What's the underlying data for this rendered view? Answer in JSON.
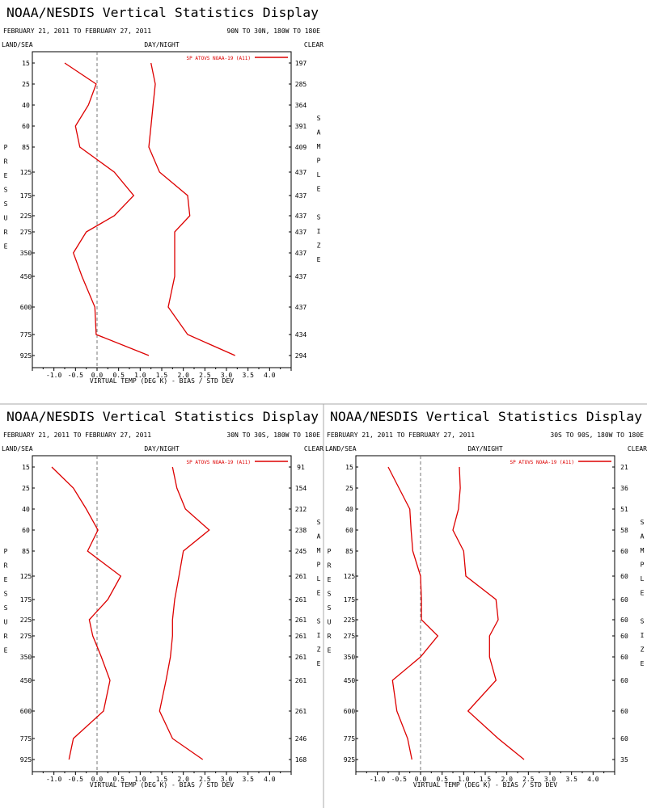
{
  "colors": {
    "series": "#dd0000",
    "axis": "#000000",
    "zero_line": "#777777",
    "divider": "#aaaaaa"
  },
  "chart_data": [
    {
      "type": "line",
      "title": "NOAA/NESDIS Vertical Statistics Display",
      "date_range": "FEBRUARY 21, 2011 TO FEBRUARY 27, 2011",
      "region": "90N TO 30N, 180W TO 180E",
      "land_sea_label": "LAND/SEA",
      "day_night_label": "DAY/NIGHT",
      "clear_label": "CLEAR",
      "ylabel": "PRESSURE",
      "y2label": "SAMPLE SIZE",
      "xlabel": "VIRTUAL TEMP (DEG K) - BIAS / STD DEV",
      "xlim": [
        -1.5,
        4.5
      ],
      "x_ticks": [
        "-1.0",
        "-0.5",
        "0.0",
        "0.5",
        "1.0",
        "1.5",
        "2.0",
        "2.5",
        "3.0",
        "3.5",
        "4.0"
      ],
      "legend": "SP ATOVS NOAA-19 (A11)",
      "legend_position": "top-right",
      "pressure_levels": [
        "15",
        "25",
        "40",
        "60",
        "85",
        "125",
        "175",
        "225",
        "275",
        "350",
        "450",
        "600",
        "775",
        "925"
      ],
      "sample_size": [
        "197",
        "285",
        "364",
        "391",
        "409",
        "437",
        "437",
        "437",
        "437",
        "437",
        "437",
        "437",
        "434",
        "294"
      ],
      "series": [
        {
          "values": [
            -0.75,
            -0.02,
            -0.2,
            -0.5,
            -0.4,
            0.4,
            0.85,
            0.4,
            -0.25,
            -0.55,
            -0.35,
            -0.05,
            -0.02,
            1.2
          ]
        },
        {
          "values": [
            1.25,
            1.35,
            1.3,
            1.25,
            1.2,
            1.45,
            2.1,
            2.15,
            1.8,
            1.8,
            1.8,
            1.65,
            2.1,
            3.2
          ]
        }
      ]
    },
    {
      "type": "line",
      "title": "NOAA/NESDIS Vertical Statistics Display",
      "date_range": "FEBRUARY 21, 2011 TO FEBRUARY 27, 2011",
      "region": "30N TO 30S, 180W TO 180E",
      "land_sea_label": "LAND/SEA",
      "day_night_label": "DAY/NIGHT",
      "clear_label": "CLEAR",
      "ylabel": "PRESSURE",
      "y2label": "SAMPLE SIZE",
      "xlabel": "VIRTUAL TEMP (DEG K) - BIAS / STD DEV",
      "xlim": [
        -1.5,
        4.5
      ],
      "x_ticks": [
        "-1.0",
        "-0.5",
        "0.0",
        "0.5",
        "1.0",
        "1.5",
        "2.0",
        "2.5",
        "3.0",
        "3.5",
        "4.0"
      ],
      "legend": "SP ATOVS NOAA-19 (A11)",
      "legend_position": "top-right",
      "pressure_levels": [
        "15",
        "25",
        "40",
        "60",
        "85",
        "125",
        "175",
        "225",
        "275",
        "350",
        "450",
        "600",
        "775",
        "925"
      ],
      "sample_size": [
        "91",
        "154",
        "212",
        "238",
        "245",
        "261",
        "261",
        "261",
        "261",
        "261",
        "261",
        "261",
        "246",
        "168"
      ],
      "series": [
        {
          "values": [
            -1.05,
            -0.55,
            -0.25,
            0.02,
            -0.22,
            0.55,
            0.25,
            -0.18,
            -0.1,
            0.1,
            0.3,
            0.15,
            -0.55,
            -0.65
          ]
        },
        {
          "values": [
            1.75,
            1.85,
            2.05,
            2.6,
            2.0,
            1.9,
            1.8,
            1.75,
            1.75,
            1.7,
            1.6,
            1.45,
            1.75,
            2.45
          ]
        }
      ]
    },
    {
      "type": "line",
      "title": "NOAA/NESDIS Vertical Statistics Display",
      "date_range": "FEBRUARY 21, 2011 TO FEBRUARY 27, 2011",
      "region": "30S TO 90S, 180W TO 180E",
      "land_sea_label": "LAND/SEA",
      "day_night_label": "DAY/NIGHT",
      "clear_label": "CLEAR",
      "ylabel": "PRESSURE",
      "y2label": "SAMPLE SIZE",
      "xlabel": "VIRTUAL TEMP (DEG K) - BIAS / STD DEV",
      "xlim": [
        -1.5,
        4.5
      ],
      "x_ticks": [
        "-1.0",
        "-0.5",
        "0.0",
        "0.5",
        "1.0",
        "1.5",
        "2.0",
        "2.5",
        "3.0",
        "3.5",
        "4.0"
      ],
      "legend": "SP ATOVS NOAA-19 (A11)",
      "legend_position": "top-right",
      "pressure_levels": [
        "15",
        "25",
        "40",
        "60",
        "85",
        "125",
        "175",
        "225",
        "275",
        "350",
        "450",
        "600",
        "775",
        "925"
      ],
      "sample_size": [
        "21",
        "36",
        "51",
        "58",
        "60",
        "60",
        "60",
        "60",
        "60",
        "60",
        "60",
        "60",
        "60",
        "35"
      ],
      "series": [
        {
          "values": [
            -0.75,
            -0.5,
            -0.25,
            -0.22,
            -0.18,
            0.0,
            0.02,
            0.02,
            0.4,
            0.0,
            -0.65,
            -0.55,
            -0.3,
            -0.2
          ]
        },
        {
          "values": [
            0.9,
            0.92,
            0.88,
            0.75,
            1.0,
            1.05,
            1.75,
            1.8,
            1.6,
            1.6,
            1.75,
            1.1,
            1.8,
            2.4
          ]
        }
      ]
    }
  ]
}
